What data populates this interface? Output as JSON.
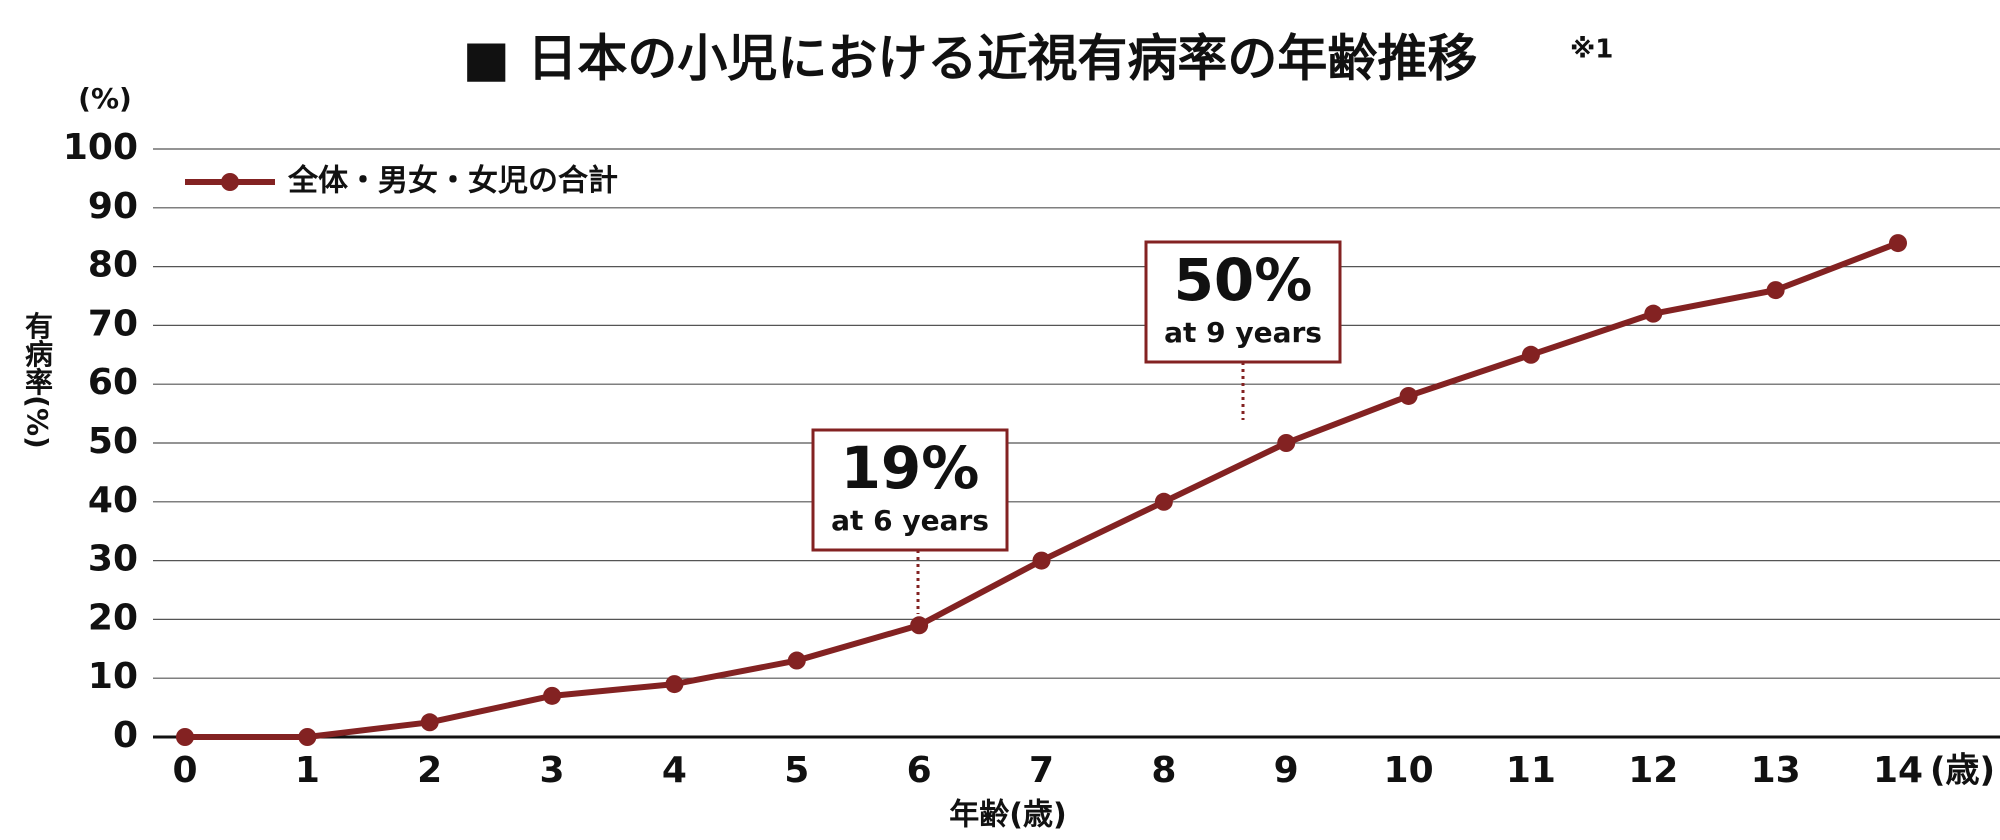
{
  "chart_data": {
    "type": "line",
    "title": "■ 日本の小児における近視有病率の年齢推移",
    "title_note": "※1",
    "y_unit": "(%)",
    "y_label": "有病率(%)",
    "x_label": "年齢(歳)",
    "x_unit": "(歳)",
    "x": [
      0,
      1,
      2,
      3,
      4,
      5,
      6,
      7,
      8,
      9,
      10,
      11,
      12,
      13,
      14
    ],
    "xlim": [
      0,
      14
    ],
    "xticks": [
      0,
      1,
      2,
      3,
      4,
      5,
      6,
      7,
      8,
      9,
      10,
      11,
      12,
      13,
      14
    ],
    "ylim": [
      0,
      100
    ],
    "yticks": [
      0,
      10,
      20,
      30,
      40,
      50,
      60,
      70,
      80,
      90,
      100
    ],
    "grid": true,
    "legend": "upper left",
    "series": [
      {
        "name": "全体・男女・女児の合計",
        "color": "#832222",
        "values": [
          0,
          0,
          2.5,
          7,
          9,
          13,
          19,
          30,
          40,
          50,
          58,
          65,
          72,
          76,
          84
        ]
      }
    ],
    "annotations": [
      {
        "label": "19%",
        "note": "at 6 years"
      },
      {
        "label": "50%",
        "note": "at 9 years"
      }
    ]
  }
}
